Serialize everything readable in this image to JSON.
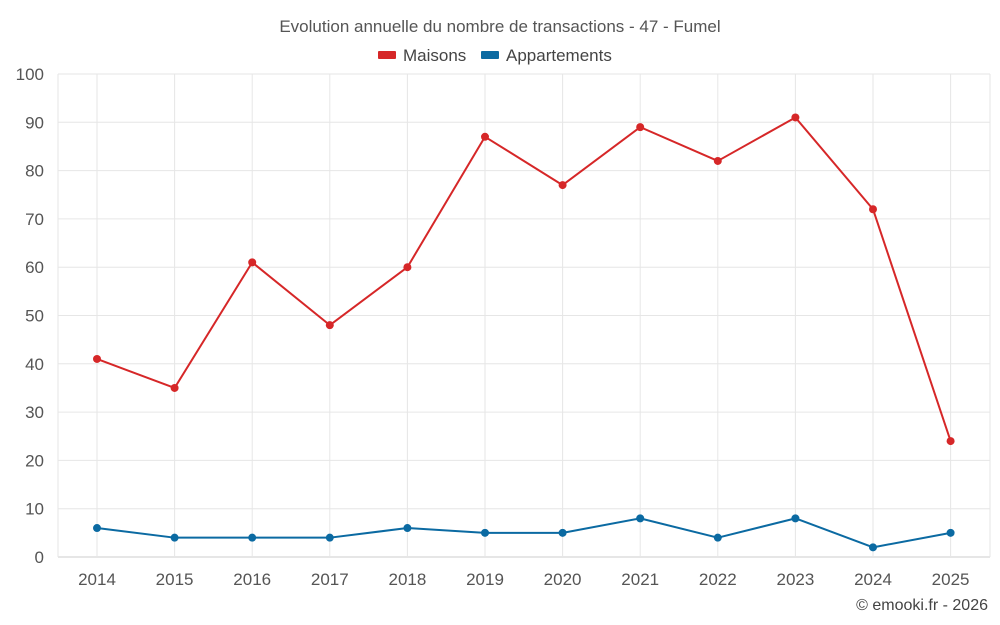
{
  "chart_data": {
    "type": "line",
    "title": "Evolution annuelle du nombre de transactions - 47 - Fumel",
    "categories": [
      "2014",
      "2015",
      "2016",
      "2017",
      "2018",
      "2019",
      "2020",
      "2021",
      "2022",
      "2023",
      "2024",
      "2025"
    ],
    "series": [
      {
        "name": "Maisons",
        "color": "#d62728",
        "values": [
          41,
          35,
          61,
          48,
          60,
          87,
          77,
          89,
          82,
          91,
          72,
          24
        ]
      },
      {
        "name": "Appartements",
        "color": "#0b6aa2",
        "values": [
          6,
          4,
          4,
          4,
          6,
          5,
          5,
          8,
          4,
          8,
          2,
          5
        ]
      }
    ],
    "xlabel": "",
    "ylabel": "",
    "ylim": [
      0,
      100
    ],
    "yticks": [
      "0",
      "10",
      "20",
      "30",
      "40",
      "50",
      "60",
      "70",
      "80",
      "90",
      "100"
    ],
    "grid": true,
    "legend_position": "top-center"
  },
  "credit": "© emooki.fr - 2026"
}
